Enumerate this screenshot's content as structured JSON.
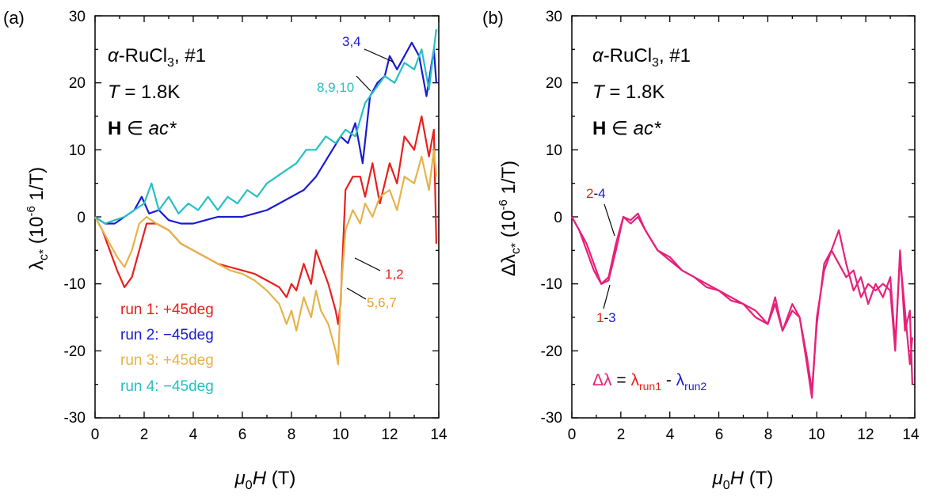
{
  "panels": [
    {
      "letter": "(a)",
      "info": {
        "alpha": "α",
        "material_main": "-RuCl",
        "material_sub": "3",
        "material_tail": ", #1",
        "temp_sym": "T",
        "temp_val": " = 1.8K",
        "field_sym": "H",
        "field_in": " ∈ ",
        "field_plane": "ac*"
      },
      "ylabel": {
        "lambda": "λ",
        "sub": "c*",
        "unit_open": " (10",
        "unit_exp": "-6",
        "unit_close": " 1/T)"
      },
      "xlabel": {
        "mu": "μ",
        "sub": "0",
        "H": "H",
        "unit": " (T)"
      },
      "xticks": [
        "0",
        "2",
        "4",
        "6",
        "8",
        "10",
        "12",
        "14"
      ],
      "yticks": [
        "-30",
        "-20",
        "-10",
        "0",
        "10",
        "20",
        "30"
      ],
      "legend": [
        {
          "label": "run 1: +45deg",
          "color": "#e8201e"
        },
        {
          "label": "run 2: −45deg",
          "color": "#1a1ad4"
        },
        {
          "label": "run 3: +45deg",
          "color": "#e6b34a"
        },
        {
          "label": "run 4: −45deg",
          "color": "#25c0c4"
        }
      ],
      "annotations": [
        {
          "text": "3,4",
          "color": "#1a1ad4"
        },
        {
          "text": "8,9,10",
          "color": "#25c0c4"
        },
        {
          "text": "1,2",
          "color": "#e8201e"
        },
        {
          "text": "5,6,7",
          "color": "#e8a02a"
        }
      ]
    },
    {
      "letter": "(b)",
      "info": {
        "alpha": "α",
        "material_main": "-RuCl",
        "material_sub": "3",
        "material_tail": ", #1",
        "temp_sym": "T",
        "temp_val": " = 1.8K",
        "field_sym": "H",
        "field_in": " ∈ ",
        "field_plane": "ac*"
      },
      "ylabel": {
        "delta": "Δλ",
        "sub": "c*",
        "unit_open": " (10",
        "unit_exp": "-6",
        "unit_close": " 1/T)"
      },
      "xlabel": {
        "mu": "μ",
        "sub": "0",
        "H": "H",
        "unit": " (T)"
      },
      "xticks": [
        "0",
        "2",
        "4",
        "6",
        "8",
        "10",
        "12",
        "14"
      ],
      "yticks": [
        "-30",
        "-20",
        "-10",
        "0",
        "10",
        "20",
        "30"
      ],
      "annotations": [
        {
          "a": "2",
          "dash": "-",
          "b": "4"
        },
        {
          "a": "1",
          "dash": "-",
          "b": "3"
        }
      ],
      "formula": {
        "lhs": "Δλ",
        "eq": " = ",
        "t1": "λ",
        "t1sub": "run1",
        "minus": " - ",
        "t2": "λ",
        "t2sub": "run2"
      }
    }
  ],
  "colors": {
    "run1": "#e8201e",
    "run2": "#1a1ad4",
    "run3": "#e6b34a",
    "run4": "#25c0c4",
    "diff": "#e8207a"
  },
  "chart_data": [
    {
      "type": "line",
      "title": "",
      "xlabel": "μ0H (T)",
      "ylabel": "λc* (10^-6 1/T)",
      "xlim": [
        0,
        14
      ],
      "ylim": [
        -30,
        30
      ],
      "series": [
        {
          "name": "run 1: +45deg",
          "color": "#e8201e",
          "x": [
            0,
            0.3,
            0.6,
            0.9,
            1.2,
            1.5,
            1.8,
            2.1,
            2.5,
            3.0,
            3.5,
            4.0,
            4.5,
            5.0,
            5.5,
            6.0,
            6.5,
            7.0,
            7.5,
            7.8,
            8.0,
            8.2,
            8.5,
            8.8,
            9.0,
            9.2,
            9.5,
            9.8,
            9.9,
            10.0,
            10.2,
            10.5,
            10.8,
            11.0,
            11.3,
            11.6,
            12.0,
            12.3,
            12.6,
            13.0,
            13.3,
            13.6,
            13.8,
            13.9
          ],
          "y": [
            0,
            -2,
            -5,
            -8,
            -10.5,
            -9,
            -5,
            -1,
            -1,
            -2,
            -4,
            -5,
            -6,
            -7,
            -7.5,
            -8,
            -8.5,
            -9.5,
            -10.5,
            -12,
            -10,
            -11,
            -7,
            -10,
            -5,
            -7,
            -10,
            -14,
            -16,
            -13,
            4,
            6,
            6,
            3,
            8,
            2,
            8,
            5,
            12,
            10,
            15,
            9,
            13,
            -4
          ]
        },
        {
          "name": "run 2: −45deg",
          "color": "#1a1ad4",
          "x": [
            0,
            0.4,
            0.8,
            1.2,
            1.6,
            1.9,
            2.2,
            2.6,
            3.0,
            3.5,
            4.0,
            4.5,
            5.0,
            5.5,
            6.0,
            6.5,
            7.0,
            7.5,
            8.0,
            8.5,
            9.0,
            9.5,
            10.0,
            10.3,
            10.6,
            10.9,
            11.2,
            11.5,
            11.8,
            12.0,
            12.3,
            12.6,
            12.9,
            13.2,
            13.5,
            13.8,
            13.9
          ],
          "y": [
            0,
            -1,
            -1,
            0,
            1,
            3,
            0.5,
            1,
            -0.5,
            -1,
            -1,
            -0.5,
            0,
            0,
            0,
            0.5,
            1,
            2,
            3,
            4,
            6,
            9,
            12,
            11,
            14,
            8,
            18,
            20,
            21,
            24,
            22,
            24,
            26,
            24,
            18,
            25,
            20
          ]
        },
        {
          "name": "run 3: +45deg",
          "color": "#e6b34a",
          "x": [
            0,
            0.3,
            0.6,
            0.9,
            1.2,
            1.5,
            1.8,
            2.1,
            2.5,
            3.0,
            3.5,
            4.0,
            4.5,
            5.0,
            5.5,
            6.0,
            6.5,
            7.0,
            7.5,
            7.8,
            8.0,
            8.2,
            8.5,
            8.8,
            9.0,
            9.2,
            9.5,
            9.8,
            9.9,
            10.0,
            10.2,
            10.5,
            10.8,
            11.0,
            11.3,
            11.6,
            12.0,
            12.3,
            12.6,
            13.0,
            13.3,
            13.6,
            13.8,
            13.9
          ],
          "y": [
            0,
            -2,
            -4,
            -6,
            -7.5,
            -5,
            -1,
            0,
            -1,
            -2,
            -4,
            -5,
            -6,
            -7,
            -8,
            -8.5,
            -9.5,
            -11,
            -13,
            -16,
            -14,
            -17,
            -12,
            -15,
            -11,
            -14,
            -16,
            -20,
            -22,
            -12,
            -2,
            1,
            -1,
            2,
            0,
            3,
            4,
            1,
            6,
            5,
            9,
            4,
            10,
            6
          ]
        },
        {
          "name": "run 4: −45deg",
          "color": "#25c0c4",
          "x": [
            0,
            0.4,
            0.8,
            1.2,
            1.6,
            2.0,
            2.3,
            2.6,
            3.0,
            3.4,
            3.8,
            4.2,
            4.6,
            5.0,
            5.4,
            5.8,
            6.2,
            6.6,
            7.0,
            7.4,
            7.8,
            8.2,
            8.6,
            9.0,
            9.4,
            9.8,
            10.2,
            10.6,
            11.0,
            11.4,
            11.8,
            12.2,
            12.6,
            13.0,
            13.3,
            13.6,
            13.9
          ],
          "y": [
            0,
            -1,
            -0.5,
            0,
            1,
            2,
            5,
            1,
            3,
            0.5,
            2,
            1,
            3,
            1,
            3,
            2,
            4,
            3,
            5,
            6,
            7,
            8,
            10,
            10,
            12,
            11,
            13,
            12,
            17,
            19,
            21,
            20,
            23,
            22,
            25,
            19,
            28
          ]
        }
      ]
    },
    {
      "type": "line",
      "title": "",
      "xlabel": "μ0H (T)",
      "ylabel": "Δλc* (10^-6 1/T)",
      "xlim": [
        0,
        14
      ],
      "ylim": [
        -30,
        30
      ],
      "series": [
        {
          "name": "1-3",
          "color": "#e8207a",
          "x": [
            0,
            0.3,
            0.6,
            0.9,
            1.2,
            1.5,
            1.8,
            2.1,
            2.4,
            2.7,
            3.0,
            3.5,
            4.0,
            4.5,
            5.0,
            5.5,
            6.0,
            6.5,
            7.0,
            7.5,
            8.0,
            8.3,
            8.6,
            9.0,
            9.3,
            9.6,
            9.8,
            10.0,
            10.3,
            10.6,
            10.9,
            11.2,
            11.5,
            11.8,
            12.1,
            12.4,
            12.7,
            13.0,
            13.2,
            13.4,
            13.6,
            13.8,
            13.9
          ],
          "y": [
            0,
            -2,
            -5,
            -8,
            -10,
            -9,
            -4,
            0,
            -1,
            0,
            -2,
            -5,
            -6,
            -8,
            -9,
            -10,
            -11,
            -12,
            -13,
            -14,
            -16,
            -13,
            -17,
            -13,
            -15,
            -22,
            -27,
            -15,
            -8,
            -5,
            -7,
            -9,
            -8,
            -12,
            -10,
            -11,
            -10,
            -11,
            -20,
            -5,
            -17,
            -14,
            -25
          ]
        },
        {
          "name": "2-4",
          "color": "#e8207a",
          "x": [
            0,
            0.3,
            0.6,
            0.9,
            1.2,
            1.5,
            1.8,
            2.1,
            2.4,
            2.7,
            3.0,
            3.5,
            4.0,
            4.5,
            5.0,
            5.5,
            6.0,
            6.5,
            7.0,
            7.5,
            8.0,
            8.3,
            8.6,
            9.0,
            9.3,
            9.6,
            9.8,
            10.0,
            10.3,
            10.6,
            10.9,
            11.2,
            11.5,
            11.8,
            12.1,
            12.4,
            12.7,
            13.0,
            13.2,
            13.4,
            13.6,
            13.8,
            13.9
          ],
          "y": [
            0,
            -2,
            -4,
            -7,
            -10,
            -9.5,
            -5,
            0,
            -0.5,
            0.5,
            -2,
            -5,
            -6.5,
            -8,
            -9,
            -10.5,
            -11,
            -12.5,
            -13,
            -15,
            -16,
            -12,
            -17,
            -14,
            -15,
            -21,
            -26,
            -16,
            -7,
            -5,
            -2,
            -7,
            -11,
            -9,
            -13,
            -10,
            -12,
            -9,
            -19,
            -6,
            -14,
            -22,
            -18
          ]
        }
      ]
    }
  ]
}
